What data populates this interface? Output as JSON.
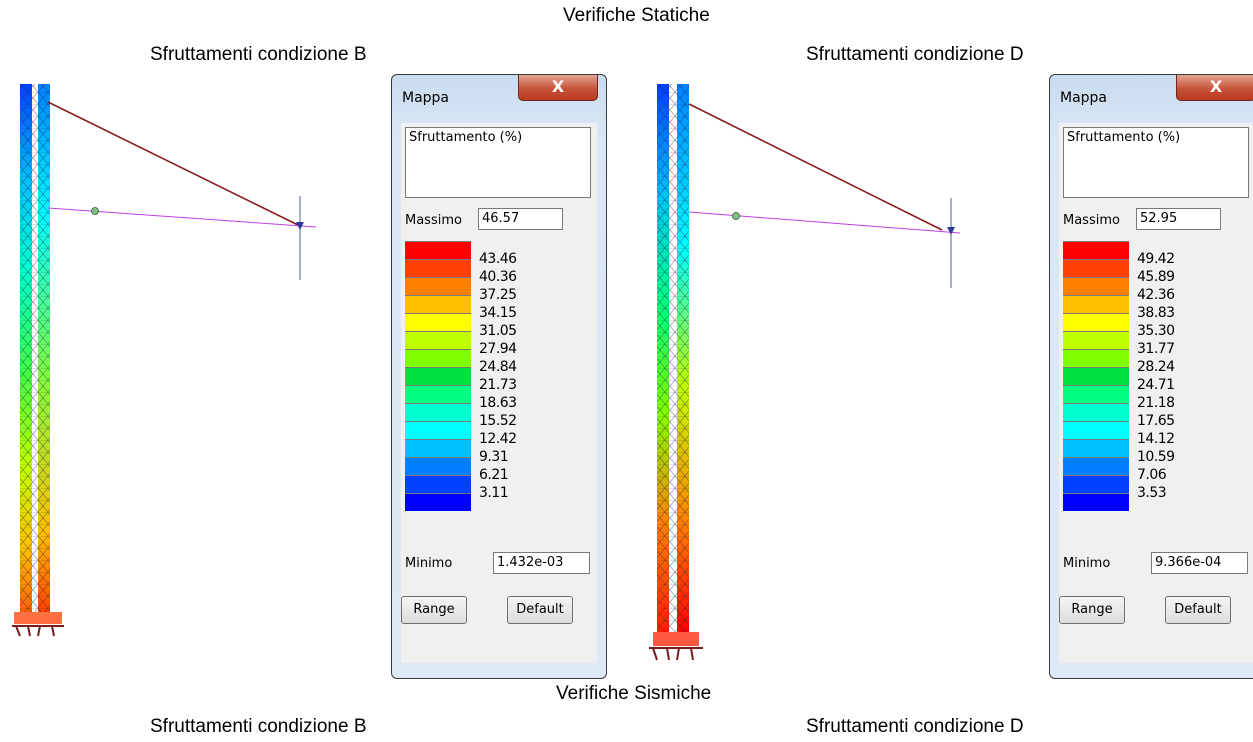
{
  "static_title": "Verifiche Statiche",
  "seismic_title": "Verifiche Sismiche",
  "top_left_heading": "Sfruttamenti condizione B",
  "top_right_heading": "Sfruttamenti condizione D",
  "bottom_left_heading": "Sfruttamenti condizione B",
  "bottom_right_heading": "Sfruttamenti condizione D",
  "panels": [
    {
      "title": "Mappa",
      "close_label": "X",
      "quantity": "Sfruttamento (%)",
      "max_label": "Massimo",
      "max_value": "46.57",
      "min_label": "Minimo",
      "min_value": "1.432e-03",
      "ticks": [
        "43.46",
        "40.36",
        "37.25",
        "34.15",
        "31.05",
        "27.94",
        "24.84",
        "21.73",
        "18.63",
        "15.52",
        "12.42",
        "9.31",
        "6.21",
        "3.11"
      ],
      "range_label": "Range",
      "default_label": "Default"
    },
    {
      "title": "Mappa",
      "close_label": "X",
      "quantity": "Sfruttamento (%)",
      "max_label": "Massimo",
      "max_value": "52.95",
      "min_label": "Minimo",
      "min_value": "9.366e-04",
      "ticks": [
        "49.42",
        "45.89",
        "42.36",
        "38.83",
        "35.30",
        "31.77",
        "28.24",
        "24.71",
        "21.18",
        "17.65",
        "14.12",
        "10.59",
        "7.06",
        "3.53"
      ],
      "range_label": "Range",
      "default_label": "Default"
    }
  ],
  "legend_colors": [
    "#ff0000",
    "#ff4000",
    "#ff8000",
    "#ffbf00",
    "#ffff00",
    "#bfff00",
    "#80ff00",
    "#00e040",
    "#00ff80",
    "#00ffd0",
    "#00ffff",
    "#00bfff",
    "#0080ff",
    "#0040ff",
    "#0000ff"
  ]
}
